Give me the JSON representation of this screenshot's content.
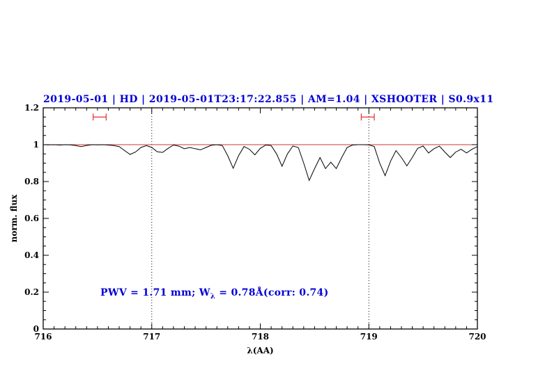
{
  "title": "2019-05-01 | HD | 2019-05-01T23:17:22.855 | AM=1.04 | XSHOOTER | S0.9x11",
  "annotation": {
    "prefix": "PWV = 1.71 mm; W",
    "sub": "λ",
    "suffix": " = 0.78Å(corr: 0.74)"
  },
  "colors": {
    "accent_blue": "#0000d6",
    "line_red": "#cc3333",
    "marker_red": "#e03030",
    "spectrum_black": "#000000"
  },
  "chart_data": {
    "type": "line",
    "title": "2019-05-01 | HD | 2019-05-01T23:17:22.855 | AM=1.04 | XSHOOTER | S0.9x11",
    "xlabel": "λ(AA)",
    "ylabel": "norm. flux",
    "xlim": [
      716,
      720
    ],
    "ylim": [
      0,
      1.2
    ],
    "grid": false,
    "x_ticks": [
      716,
      717,
      718,
      719,
      720
    ],
    "x_tick_labels": [
      "716",
      "717",
      "718",
      "719",
      "720"
    ],
    "y_ticks": [
      0,
      0.2,
      0.4,
      0.6,
      0.8,
      1,
      1.2
    ],
    "y_tick_labels": [
      "0",
      "0.2",
      "0.4",
      "0.6",
      "0.8",
      "1",
      "1.2"
    ],
    "x_minor_step": 0.1,
    "y_minor_step": 0.05,
    "vlines_dotted": [
      717,
      719
    ],
    "hline_red": 1.0,
    "range_markers": [
      {
        "x_center": 716.52,
        "half_width": 0.06,
        "y": 1.15
      },
      {
        "x_center": 718.99,
        "half_width": 0.06,
        "y": 1.15
      }
    ],
    "annotation_data_pos": {
      "x": 716.55,
      "y": 0.2
    },
    "series": [
      {
        "name": "spectrum",
        "x": [
          716.0,
          716.05,
          716.1,
          716.15,
          716.2,
          716.25,
          716.3,
          716.35,
          716.4,
          716.45,
          716.5,
          716.55,
          716.6,
          716.65,
          716.7,
          716.75,
          716.8,
          716.85,
          716.9,
          716.95,
          717.0,
          717.05,
          717.1,
          717.15,
          717.2,
          717.25,
          717.3,
          717.35,
          717.4,
          717.45,
          717.5,
          717.55,
          717.6,
          717.65,
          717.7,
          717.75,
          717.8,
          717.85,
          717.9,
          717.95,
          718.0,
          718.05,
          718.1,
          718.15,
          718.2,
          718.25,
          718.3,
          718.35,
          718.4,
          718.45,
          718.5,
          718.55,
          718.6,
          718.65,
          718.7,
          718.75,
          718.8,
          718.85,
          718.9,
          718.95,
          719.0,
          719.05,
          719.1,
          719.15,
          719.2,
          719.25,
          719.3,
          719.35,
          719.4,
          719.45,
          719.5,
          719.55,
          719.6,
          719.65,
          719.7,
          719.75,
          719.8,
          719.85,
          719.9,
          719.95,
          720.0
        ],
        "y": [
          1.0,
          0.999,
          1.0,
          0.998,
          1.0,
          0.999,
          0.995,
          0.99,
          0.996,
          1.0,
          0.999,
          1.0,
          0.998,
          0.995,
          0.99,
          0.968,
          0.947,
          0.96,
          0.985,
          0.995,
          0.985,
          0.962,
          0.958,
          0.98,
          0.998,
          0.992,
          0.978,
          0.985,
          0.978,
          0.972,
          0.985,
          0.997,
          1.0,
          0.995,
          0.94,
          0.872,
          0.94,
          0.99,
          0.975,
          0.945,
          0.98,
          0.998,
          0.995,
          0.95,
          0.883,
          0.95,
          0.993,
          0.985,
          0.9,
          0.806,
          0.87,
          0.93,
          0.87,
          0.905,
          0.87,
          0.93,
          0.985,
          0.998,
          1.0,
          1.0,
          0.999,
          0.99,
          0.9,
          0.832,
          0.91,
          0.968,
          0.93,
          0.885,
          0.93,
          0.98,
          0.993,
          0.955,
          0.978,
          0.992,
          0.96,
          0.93,
          0.96,
          0.975,
          0.955,
          0.975,
          0.99
        ]
      }
    ]
  }
}
